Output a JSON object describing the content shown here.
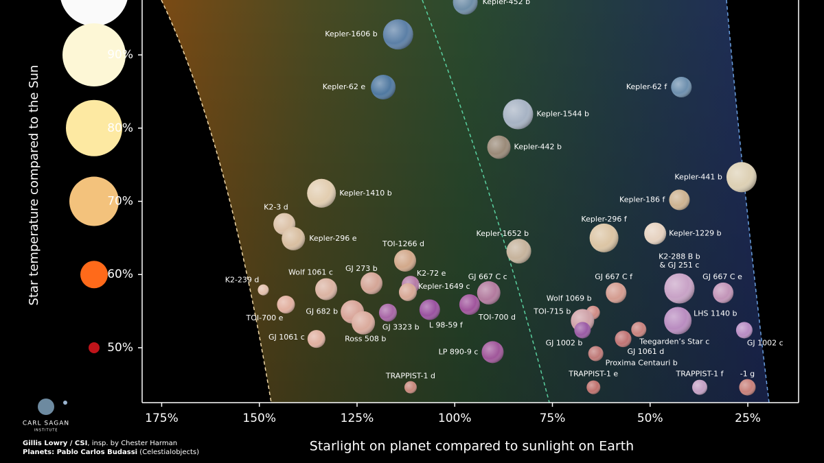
{
  "chart_data": {
    "type": "scatter",
    "x_label": "Starlight on planet compared to sunlight on Earth",
    "y_label": "Star temperature compared to the Sun",
    "xlim": [
      180,
      12
    ],
    "ylim": [
      42.5,
      97.5
    ],
    "xticks": [
      {
        "value": 175,
        "label": "175%"
      },
      {
        "value": 150,
        "label": "150%"
      },
      {
        "value": 125,
        "label": "125%"
      },
      {
        "value": 100,
        "label": "100%"
      },
      {
        "value": 75,
        "label": "75%"
      },
      {
        "value": 50,
        "label": "50%"
      },
      {
        "value": 25,
        "label": "25%"
      }
    ],
    "yticks": [
      {
        "value": 90,
        "label": "90%"
      },
      {
        "value": 80,
        "label": "80%"
      },
      {
        "value": 70,
        "label": "70%"
      },
      {
        "value": 60,
        "label": "60%"
      },
      {
        "value": 50,
        "label": "50%"
      }
    ],
    "ytick_colors": [
      "#fdf7d6",
      "#fde9a2",
      "#f3c27c",
      "#ff6a1a",
      "#c0141a"
    ],
    "points": [
      {
        "name": "Kepler-452 b",
        "x": 97.3,
        "y": 97.2,
        "size": 18,
        "color": "#6f8ea8"
      },
      {
        "name": "Kepler-1606 b",
        "x": 114.5,
        "y": 92.8,
        "size": 22,
        "color": "#5b7fa6"
      },
      {
        "name": "Kepler-62 e",
        "x": 118.3,
        "y": 85.6,
        "size": 18,
        "color": "#4f78a0"
      },
      {
        "name": "Kepler-62 f",
        "x": 42,
        "y": 85.6,
        "size": 15,
        "color": "#6d8fae"
      },
      {
        "name": "Kepler-1544 b",
        "x": 83.8,
        "y": 81.9,
        "size": 22,
        "color": "#a7b3c4"
      },
      {
        "name": "Kepler-442 b",
        "x": 88.7,
        "y": 77.4,
        "size": 17,
        "color": "#9a8a78"
      },
      {
        "name": "Kepler-1410 b",
        "x": 134.1,
        "y": 71.1,
        "size": 21,
        "color": "#e2cdb0"
      },
      {
        "name": "Kepler-441 b",
        "x": 26.6,
        "y": 73.3,
        "size": 22,
        "color": "#ddd0b4"
      },
      {
        "name": "Kepler-186 f",
        "x": 42.5,
        "y": 70.2,
        "size": 15,
        "color": "#cdb391"
      },
      {
        "name": "K2-3 d",
        "x": 143.6,
        "y": 66.9,
        "size": 16,
        "color": "#dcc2a8"
      },
      {
        "name": "Kepler-296 e",
        "x": 141.3,
        "y": 64.9,
        "size": 17,
        "color": "#d8bea0"
      },
      {
        "name": "Kepler-296 f",
        "x": 61.8,
        "y": 65,
        "size": 21,
        "color": "#dcc5a4"
      },
      {
        "name": "Kepler-1229 b",
        "x": 48.7,
        "y": 65.6,
        "size": 16,
        "color": "#e6d2c0"
      },
      {
        "name": "TOI-1266 d",
        "x": 112.7,
        "y": 61.9,
        "size": 16,
        "color": "#d2a88a"
      },
      {
        "name": "Kepler-1652 b",
        "x": 83.6,
        "y": 63.2,
        "size": 18,
        "color": "#c6b39c"
      },
      {
        "name": "K2-239 d",
        "x": 149,
        "y": 57.9,
        "size": 8,
        "color": "#e4c0ac"
      },
      {
        "name": "Wolf 1061 c",
        "x": 132.9,
        "y": 58,
        "size": 16,
        "color": "#dbb3a2"
      },
      {
        "name": "GJ 273 b",
        "x": 121.3,
        "y": 58.8,
        "size": 16,
        "color": "#d4a596"
      },
      {
        "name": "K2-72 e",
        "x": 111.3,
        "y": 58.6,
        "size": 13,
        "color": "#b57aa6"
      },
      {
        "name": "Kepler-1649 c",
        "x": 112,
        "y": 57.6,
        "size": 13,
        "color": "#d8a896"
      },
      {
        "name": "GJ 667 C c",
        "x": 91.3,
        "y": 57.5,
        "size": 17,
        "color": "#b27a9e"
      },
      {
        "name": "GJ 667 C f",
        "x": 58.7,
        "y": 57.5,
        "size": 15,
        "color": "#d49c90"
      },
      {
        "name": "K2-288 B b\n& GJ 251 c",
        "x": 42.5,
        "y": 58.1,
        "size": 22,
        "color": "#c8a2c6"
      },
      {
        "name": "GJ 667 C e",
        "x": 31.3,
        "y": 57.5,
        "size": 15,
        "color": "#c294b8"
      },
      {
        "name": "TOI-700 e",
        "x": 143.2,
        "y": 55.9,
        "size": 13,
        "color": "#e2b0a0"
      },
      {
        "name": "GJ 682 b",
        "x": 126.2,
        "y": 54.9,
        "size": 17,
        "color": "#d8a498"
      },
      {
        "name": "GJ 3323 b",
        "x": 117.1,
        "y": 54.8,
        "size": 13,
        "color": "#a866a6"
      },
      {
        "name": "L 98-59 f",
        "x": 106.4,
        "y": 55.2,
        "size": 15,
        "color": "#9a52a0"
      },
      {
        "name": "TOI-700 d",
        "x": 96.2,
        "y": 55.9,
        "size": 15,
        "color": "#a0549c"
      },
      {
        "name": "Ross 508 b",
        "x": 123.4,
        "y": 53.4,
        "size": 17,
        "color": "#daaa9c"
      },
      {
        "name": "Wolf 1069 b",
        "x": 64.6,
        "y": 54.8,
        "size": 10,
        "color": "#cf8a84"
      },
      {
        "name": "TOI-715 b",
        "x": 67.3,
        "y": 53.7,
        "size": 17,
        "color": "#cfa2a8"
      },
      {
        "name": "LHS 1140 b",
        "x": 42.9,
        "y": 53.7,
        "size": 20,
        "color": "#b98cc0"
      },
      {
        "name": "GJ 1061 c",
        "x": 135.4,
        "y": 51.2,
        "size": 13,
        "color": "#e0b0a0"
      },
      {
        "name": "GJ 1002 b",
        "x": 67.3,
        "y": 52.4,
        "size": 12,
        "color": "#9a5aa4"
      },
      {
        "name": "Teegarden’s Star c",
        "x": 52.9,
        "y": 52.5,
        "size": 11,
        "color": "#c8827e"
      },
      {
        "name": "GJ 1061 d",
        "x": 56.9,
        "y": 51.2,
        "size": 12,
        "color": "#c07474"
      },
      {
        "name": "GJ 1002 c",
        "x": 25.9,
        "y": 52.4,
        "size": 12,
        "color": "#b88cc4"
      },
      {
        "name": "LP 890-9 c",
        "x": 90.3,
        "y": 49.4,
        "size": 16,
        "color": "#a0569a"
      },
      {
        "name": "Proxima Centauri b",
        "x": 63.9,
        "y": 49.2,
        "size": 11,
        "color": "#c07a78"
      },
      {
        "name": "TRAPPIST-1 d",
        "x": 111.3,
        "y": 44.6,
        "size": 9,
        "color": "#c8887c"
      },
      {
        "name": "TRAPPIST-1 e",
        "x": 64.5,
        "y": 44.6,
        "size": 10,
        "color": "#c0726e"
      },
      {
        "name": "TRAPPIST-1 f",
        "x": 37.3,
        "y": 44.6,
        "size": 11,
        "color": "#c4a0c4"
      },
      {
        "name": "-1 g",
        "x": 25.1,
        "y": 44.6,
        "size": 12,
        "color": "#c8807a"
      }
    ]
  },
  "credits": [
    {
      "bold": "Gillis Lowry / CSI",
      "normal": ", insp. by Chester Harman"
    },
    {
      "bold": "Planets: Pablo Carlos Budassi",
      "normal": " (Celestialobjects)"
    }
  ],
  "logo": {
    "line1": "CARL SAGAN",
    "line2": "INSTITUTE"
  }
}
